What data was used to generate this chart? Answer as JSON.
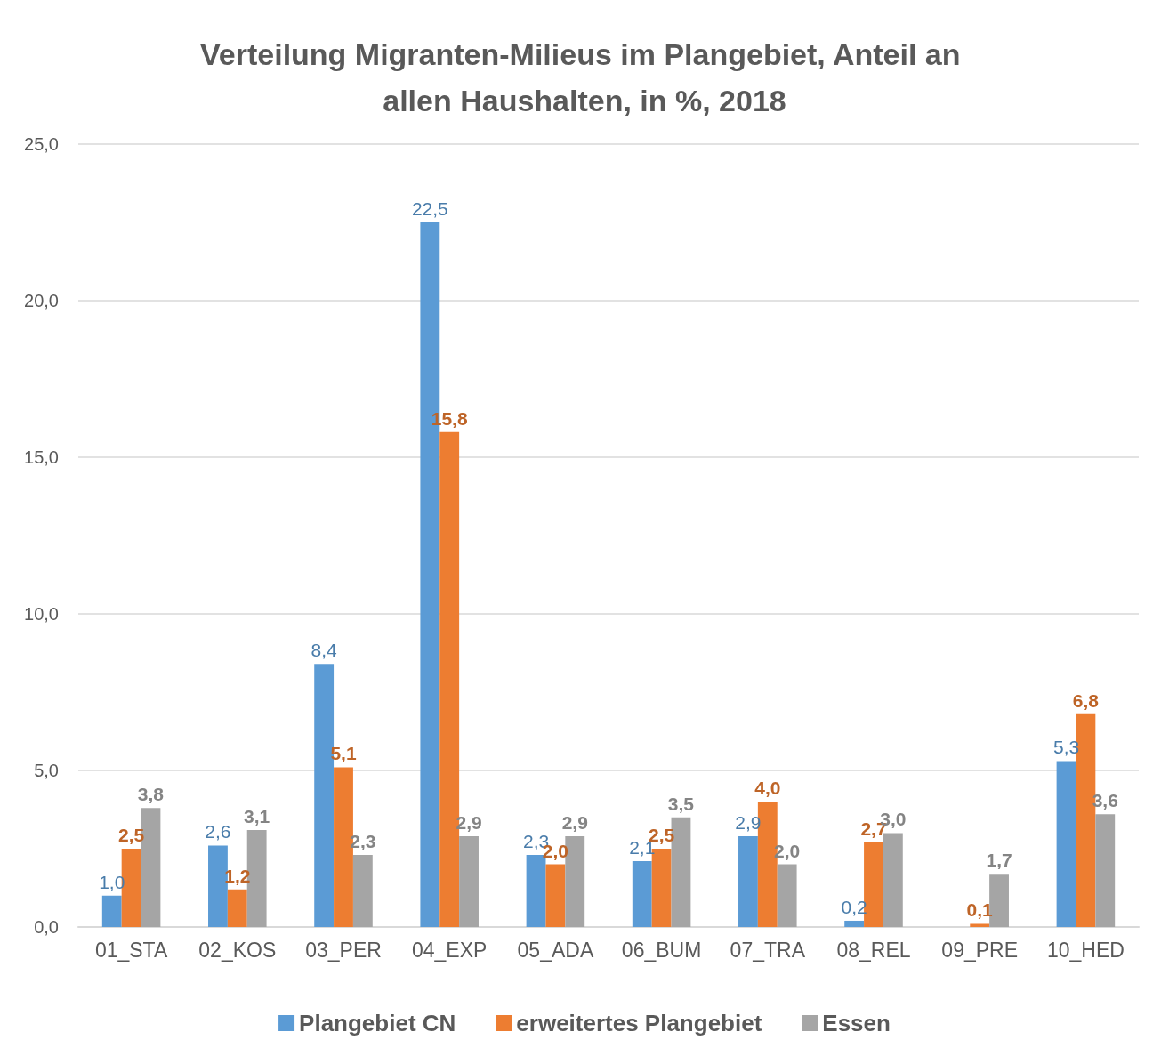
{
  "chart_data": {
    "type": "bar",
    "title": "Verteilung Migranten-Milieus im Plangebiet, Anteil an allen Haushalten, in %, 2018",
    "categories": [
      "01_STA",
      "02_KOS",
      "03_PER",
      "04_EXP",
      "05_ADA",
      "06_BUM",
      "07_TRA",
      "08_REL",
      "09_PRE",
      "10_HED"
    ],
    "series": [
      {
        "name": "Plangebiet CN",
        "color": "#5b9bd5",
        "values": [
          1.0,
          2.6,
          8.4,
          22.5,
          2.3,
          2.1,
          2.9,
          0.2,
          null,
          5.3
        ],
        "value_labels": [
          "1,0",
          "2,6",
          "8,4",
          "22,5",
          "2,3",
          "2,1",
          "2,9",
          "0,2",
          null,
          "5,3"
        ]
      },
      {
        "name": "erweitertes Plangebiet",
        "color": "#ed7d31",
        "values": [
          2.5,
          1.2,
          5.1,
          15.8,
          2.0,
          2.5,
          4.0,
          2.7,
          0.1,
          6.8
        ],
        "value_labels": [
          "2,5",
          "1,2",
          "5,1",
          "15,8",
          "2,0",
          "2,5",
          "4,0",
          "2,7",
          "0,1",
          "6,8"
        ]
      },
      {
        "name": "Essen",
        "color": "#a5a5a5",
        "values": [
          3.8,
          3.1,
          2.3,
          2.9,
          2.9,
          3.5,
          2.0,
          3.0,
          1.7,
          3.6
        ],
        "value_labels": [
          "3,8",
          "3,1",
          "2,3",
          "2,9",
          "2,9",
          "3,5",
          "2,0",
          "3,0",
          "1,7",
          "3,6"
        ]
      }
    ],
    "ylim": [
      0,
      25
    ],
    "yticks": [
      {
        "value": 0,
        "label": "0,0"
      },
      {
        "value": 5,
        "label": "5,0"
      },
      {
        "value": 10,
        "label": "10,0"
      },
      {
        "value": 15,
        "label": "15,0"
      },
      {
        "value": 20,
        "label": "20,0"
      },
      {
        "value": 25,
        "label": "25,0"
      }
    ],
    "grid": "y",
    "legend": "bottom"
  }
}
